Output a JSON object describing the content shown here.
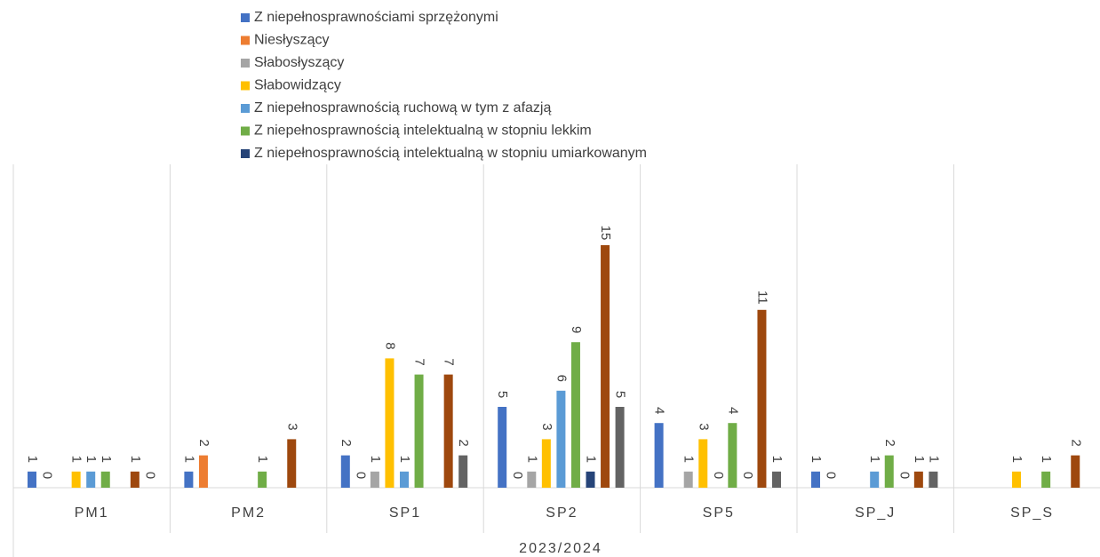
{
  "chart_data": {
    "type": "bar",
    "categories": [
      "PM1",
      "PM2",
      "SP1",
      "SP2",
      "SP5",
      "SP_J",
      "SP_S"
    ],
    "x_label": "2023/2024",
    "series": [
      {
        "name": "Z niepełnosprawnościami sprzężonymi",
        "color": "#4472c4",
        "values": [
          1,
          1,
          2,
          5,
          4,
          1,
          null
        ]
      },
      {
        "name": "Niesłyszący",
        "color": "#ed7d31",
        "values": [
          0,
          2,
          0,
          0,
          null,
          0,
          null
        ]
      },
      {
        "name": "Słabosłyszący",
        "color": "#a5a5a5",
        "values": [
          null,
          null,
          1,
          1,
          1,
          null,
          null
        ]
      },
      {
        "name": "Słabowidzący",
        "color": "#ffc000",
        "values": [
          1,
          null,
          8,
          3,
          3,
          null,
          1
        ]
      },
      {
        "name": "Z niepełnosprawnością ruchową w tym z afazją",
        "color": "#5b9bd5",
        "values": [
          1,
          null,
          1,
          6,
          0,
          1,
          null
        ]
      },
      {
        "name": "Z niepełnosprawnością intelektualną w stopniu lekkim",
        "color": "#70ad47",
        "values": [
          1,
          1,
          7,
          9,
          4,
          2,
          1
        ]
      },
      {
        "name": "Z niepełnosprawnością intelektualną w stopniu umiarkowanym",
        "color": "#264478",
        "values": [
          null,
          null,
          null,
          1,
          0,
          0,
          null
        ]
      },
      {
        "color": "#9e480e",
        "values": [
          1,
          3,
          7,
          15,
          11,
          1,
          2
        ]
      },
      {
        "color": "#636363",
        "values": [
          0,
          null,
          2,
          5,
          1,
          1,
          null
        ]
      }
    ],
    "ylim": [
      0,
      20
    ]
  }
}
